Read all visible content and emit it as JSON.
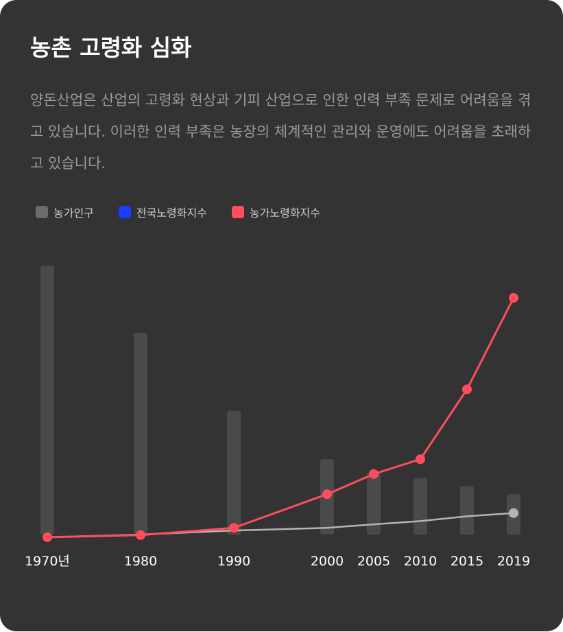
{
  "title": "농촌 고령화 심화",
  "description": "양돈산업은 산업의 고령화 현상과 기피 산업으로 인한 인력 부족 문제로 어려움을 겪고 있습니다. 이러한 인력 부족은 농장의 체계적인 관리와 운영에도 어려움을 초래하고 있습니다.",
  "chart_data": {
    "type": "bar",
    "categories": [
      "1970년",
      "1980",
      "1990",
      "2000",
      "2005",
      "2010",
      "2015",
      "2019"
    ],
    "ylim": [
      0,
      100
    ],
    "grid": false,
    "legend_position": "top-left",
    "series": [
      {
        "name": "농가인구",
        "type": "bar",
        "color": "#4a4a4a",
        "values": [
          100,
          75,
          46,
          28,
          23,
          21,
          18,
          15
        ],
        "legend_color": "#6b6b6b"
      },
      {
        "name": "전국노령화지수",
        "type": "line",
        "color": "#b5b5b5",
        "values": [
          -1,
          0,
          1.5,
          2.5,
          3.8,
          5,
          6.8,
          8
        ],
        "legend_color": "#1a3dff"
      },
      {
        "name": "농가노령화지수",
        "type": "line",
        "color": "#ff4d5e",
        "values": [
          -1,
          -0.2,
          2.5,
          15,
          22.5,
          28,
          54,
          88
        ],
        "legend_color": "#ff4d5e"
      }
    ]
  }
}
